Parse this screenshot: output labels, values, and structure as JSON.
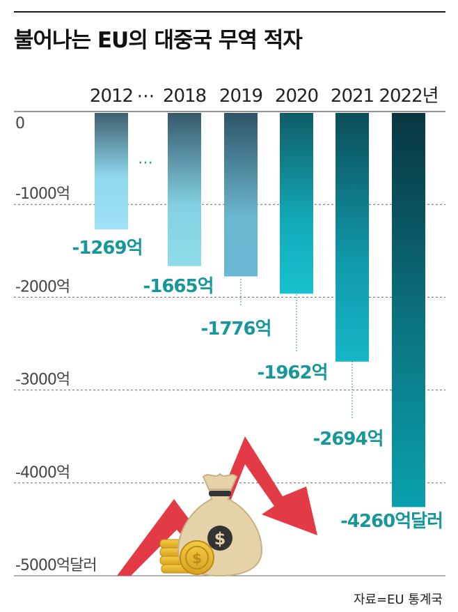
{
  "title": "불어나는 EU의 대중국 무역 적자",
  "source": "자료=EU 통계국",
  "colors": {
    "teal_label": "#17979a",
    "bar_light": "#8ed9ea",
    "bar_teal": "#0a9aa8",
    "bar_dark": "#0b3f4a",
    "grid": "#555555",
    "arrow": "#e23b45",
    "bag": "#e3cfa6",
    "coin": "#e8b729"
  },
  "icons": [
    "money-bag-icon",
    "gold-coins-icon",
    "red-down-arrow-icon"
  ],
  "gap_symbol": "⋯",
  "chart_data": {
    "type": "bar",
    "title": "불어나는 EU의 대중국 무역 적자",
    "unit_label": "억달러",
    "categories": [
      "2012",
      "2018",
      "2019",
      "2020",
      "2021",
      "2022년"
    ],
    "values": [
      -1269,
      -1665,
      -1776,
      -1962,
      -2694,
      -4260
    ],
    "data_labels": [
      "-1269억",
      "-1665억",
      "-1776억",
      "-1962억",
      "-2694억",
      "-4260억달러"
    ],
    "ylim": [
      -5000,
      0
    ],
    "yticks": [
      0,
      -1000,
      -2000,
      -3000,
      -4000,
      -5000
    ],
    "ytick_labels": [
      "0",
      "-1000억",
      "-2000억",
      "-3000억",
      "-4000억",
      "-5000억달러"
    ],
    "axis_position": "top",
    "grid": true
  }
}
